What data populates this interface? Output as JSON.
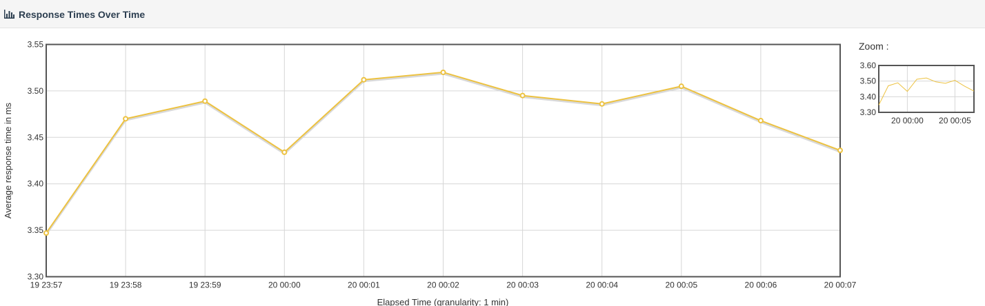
{
  "header": {
    "title": "Response Times Over Time",
    "icon": "bar-chart-icon"
  },
  "zoom": {
    "label": "Zoom :",
    "y_ticks": [
      "3.30",
      "3.40",
      "3.50",
      "3.60"
    ],
    "x_ticks": [
      "20 00:00",
      "20 00:05"
    ]
  },
  "colors": {
    "series": "#edc240",
    "shadow": "#d9d9d9",
    "grid": "#d6d6d6",
    "border": "#545454"
  },
  "chart_data": {
    "type": "line",
    "title": "",
    "xlabel": "Elapsed Time (granularity: 1 min)",
    "ylabel": "Average response time in ms",
    "ylim": [
      3.3,
      3.55
    ],
    "y_ticks": [
      "3.30",
      "3.35",
      "3.40",
      "3.45",
      "3.50",
      "3.55"
    ],
    "x_ticks": [
      "19 23:57",
      "19 23:58",
      "19 23:59",
      "20 00:00",
      "20 00:01",
      "20 00:02",
      "20 00:03",
      "20 00:04",
      "20 00:05",
      "20 00:06",
      "20 00:07"
    ],
    "grid": true,
    "series": [
      {
        "name": "",
        "values": [
          3.347,
          3.47,
          3.489,
          3.434,
          3.512,
          3.52,
          3.495,
          3.486,
          3.505,
          3.468,
          3.436
        ]
      }
    ]
  }
}
